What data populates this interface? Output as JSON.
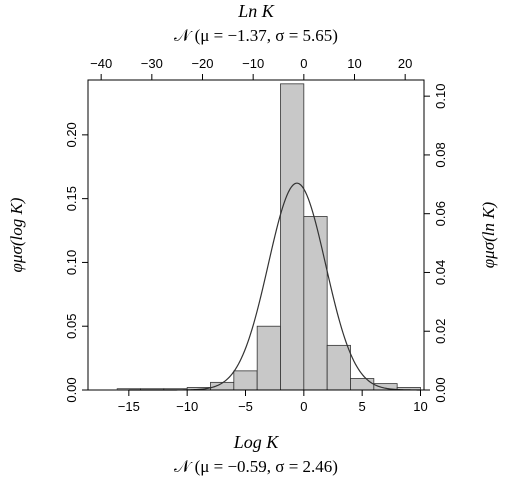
{
  "chart_data": {
    "type": "bar",
    "bottom_axis": {
      "label": "Log K",
      "distribution": "𝒩 (μ = −0.59, σ = 2.46)",
      "xlim": [
        -18.5,
        10.3
      ],
      "ticks": [
        -15,
        -10,
        -5,
        0,
        5,
        10
      ],
      "tick_labels": [
        "−15",
        "−10",
        "−5",
        "0",
        "5",
        "10"
      ]
    },
    "top_axis": {
      "label": "Ln K",
      "distribution": "𝒩 (μ = −1.37, σ = 5.65)",
      "ticks": [
        -40,
        -30,
        -20,
        -10,
        0,
        10,
        20
      ],
      "tick_labels": [
        "−40",
        "−30",
        "−20",
        "−10",
        "0",
        "10",
        "20"
      ]
    },
    "left_axis": {
      "label": "φμσ(log K)",
      "ylim": [
        0,
        0.243
      ],
      "ticks": [
        0,
        0.05,
        0.1,
        0.15,
        0.2
      ],
      "tick_labels": [
        "0.00",
        "0.05",
        "0.10",
        "0.15",
        "0.20"
      ]
    },
    "right_axis": {
      "label": "φμσ(ln K)",
      "ylim": [
        0,
        0.1055
      ],
      "ticks": [
        0,
        0.02,
        0.04,
        0.06,
        0.08,
        0.1
      ],
      "tick_labels": [
        "0.00",
        "0.02",
        "0.04",
        "0.06",
        "0.08",
        "0.10"
      ]
    },
    "histogram": {
      "bin_edges": [
        -16,
        -14,
        -12,
        -10,
        -8,
        -6,
        -4,
        -2,
        0,
        2,
        4,
        6,
        8,
        10
      ],
      "density": [
        0.001,
        0.001,
        0.001,
        0.002,
        0.006,
        0.015,
        0.05,
        0.24,
        0.136,
        0.035,
        0.009,
        0.005,
        0.002
      ]
    },
    "curve": {
      "mu": -0.59,
      "sigma": 2.46
    },
    "colors": {
      "bar_fill": "#c8c8c8",
      "stroke": "#333333"
    },
    "grid": false
  }
}
